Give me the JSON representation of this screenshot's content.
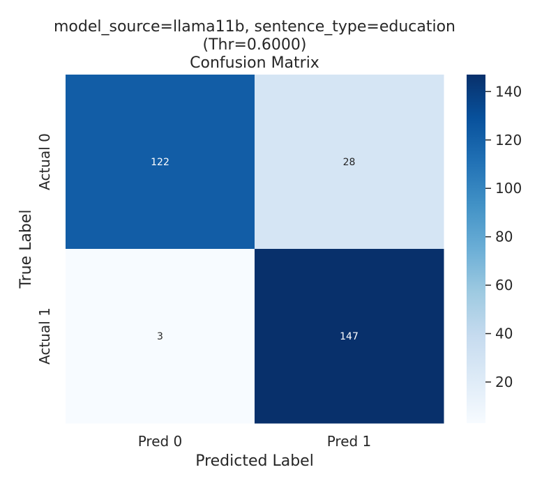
{
  "chart_data": {
    "type": "heatmap",
    "title_lines": [
      "model_source=llama11b, sentence_type=education",
      "(Thr=0.6000)",
      "Confusion Matrix"
    ],
    "xlabel": "Predicted Label",
    "ylabel": "True Label",
    "x_categories": [
      "Pred 0",
      "Pred 1"
    ],
    "y_categories": [
      "Actual 0",
      "Actual 1"
    ],
    "values": [
      [
        122,
        28
      ],
      [
        3,
        147
      ]
    ],
    "colorbar": {
      "ticks": [
        20,
        40,
        60,
        80,
        100,
        120,
        140
      ],
      "min": 3,
      "max": 147,
      "colormap": "Blues"
    },
    "colors": {
      "low": "#f7fbff",
      "high": "#08306b"
    }
  }
}
